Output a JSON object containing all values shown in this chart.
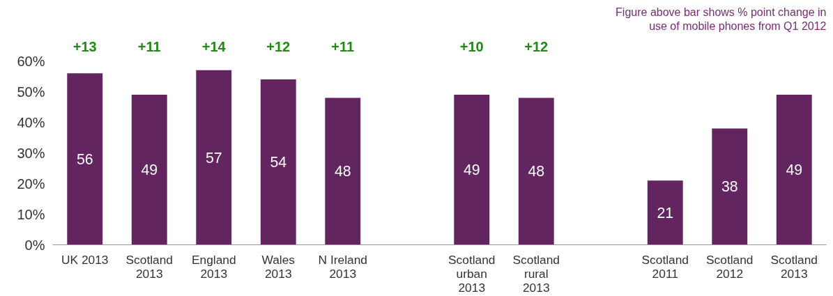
{
  "chart_data": {
    "type": "bar",
    "categories": [
      "UK 2013",
      "Scotland\n2013",
      "England\n2013",
      "Wales\n2013",
      "N Ireland\n2013",
      null,
      "Scotland\nurban\n2013",
      "Scotland\nrural\n2013",
      null,
      "Scotland\n2011",
      "Scotland\n2012",
      "Scotland\n2013"
    ],
    "values": [
      56,
      49,
      57,
      54,
      48,
      null,
      49,
      48,
      null,
      21,
      38,
      49
    ],
    "color": "#62255f",
    "data_labels": true,
    "ylim": [
      0,
      60
    ],
    "yticks": [
      {
        "value": 0,
        "label": "0%"
      },
      {
        "value": 10,
        "label": "10%"
      },
      {
        "value": 20,
        "label": "20%"
      },
      {
        "value": 30,
        "label": "30%"
      },
      {
        "value": 40,
        "label": "40%"
      },
      {
        "value": 50,
        "label": "50%"
      },
      {
        "value": 60,
        "label": "60%"
      }
    ],
    "grid": false,
    "annotations": [
      "+13",
      "+11",
      "+14",
      "+12",
      "+11",
      "+10",
      "+12",
      "Figure above bar shows % point change in\nuse of mobile phones from Q1 2012"
    ]
  }
}
